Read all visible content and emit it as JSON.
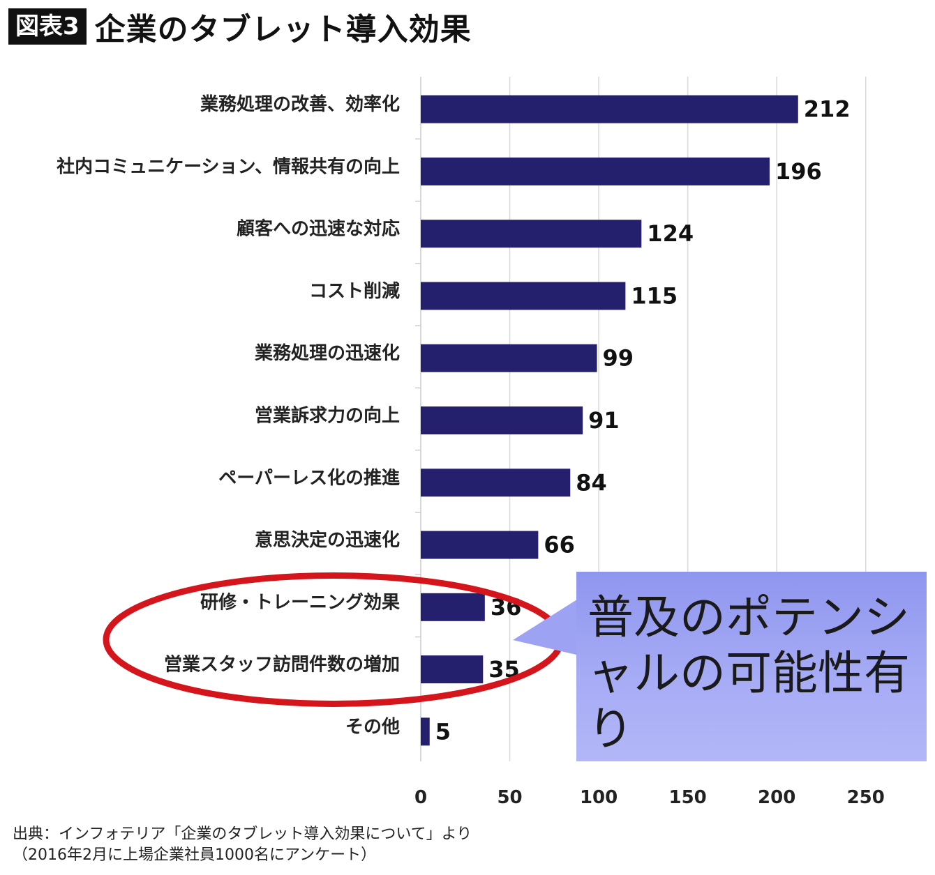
{
  "header": {
    "badge": "図表3",
    "title": "企業のタブレット導入効果"
  },
  "chart_data": {
    "type": "bar",
    "orientation": "horizontal",
    "title": "企業のタブレット導入効果",
    "categories": [
      "業務処理の改善、効率化",
      "社内コミュニケーション、情報共有の向上",
      "顧客への迅速な対応",
      "コスト削減",
      "業務処理の迅速化",
      "営業訴求力の向上",
      "ペーパーレス化の推進",
      "意思決定の迅速化",
      "研修・トレーニング効果",
      "営業スタッフ訪問件数の増加",
      "その他"
    ],
    "values": [
      212,
      196,
      124,
      115,
      99,
      91,
      84,
      66,
      36,
      35,
      5
    ],
    "xlim": [
      0,
      285
    ],
    "xticks": [
      0,
      50,
      100,
      150,
      200,
      250
    ],
    "grid": true,
    "bar_color": "#24206e",
    "highlight_color": "#d4151b"
  },
  "callout": {
    "text": "普及のポテンシャルの可能性有り",
    "color": "#9da2f3"
  },
  "source": {
    "line1": "出典：インフォテリア「企業のタブレット導入効果について」より",
    "line2": "（2016年2月に上場企業社員1000名にアンケート）"
  }
}
